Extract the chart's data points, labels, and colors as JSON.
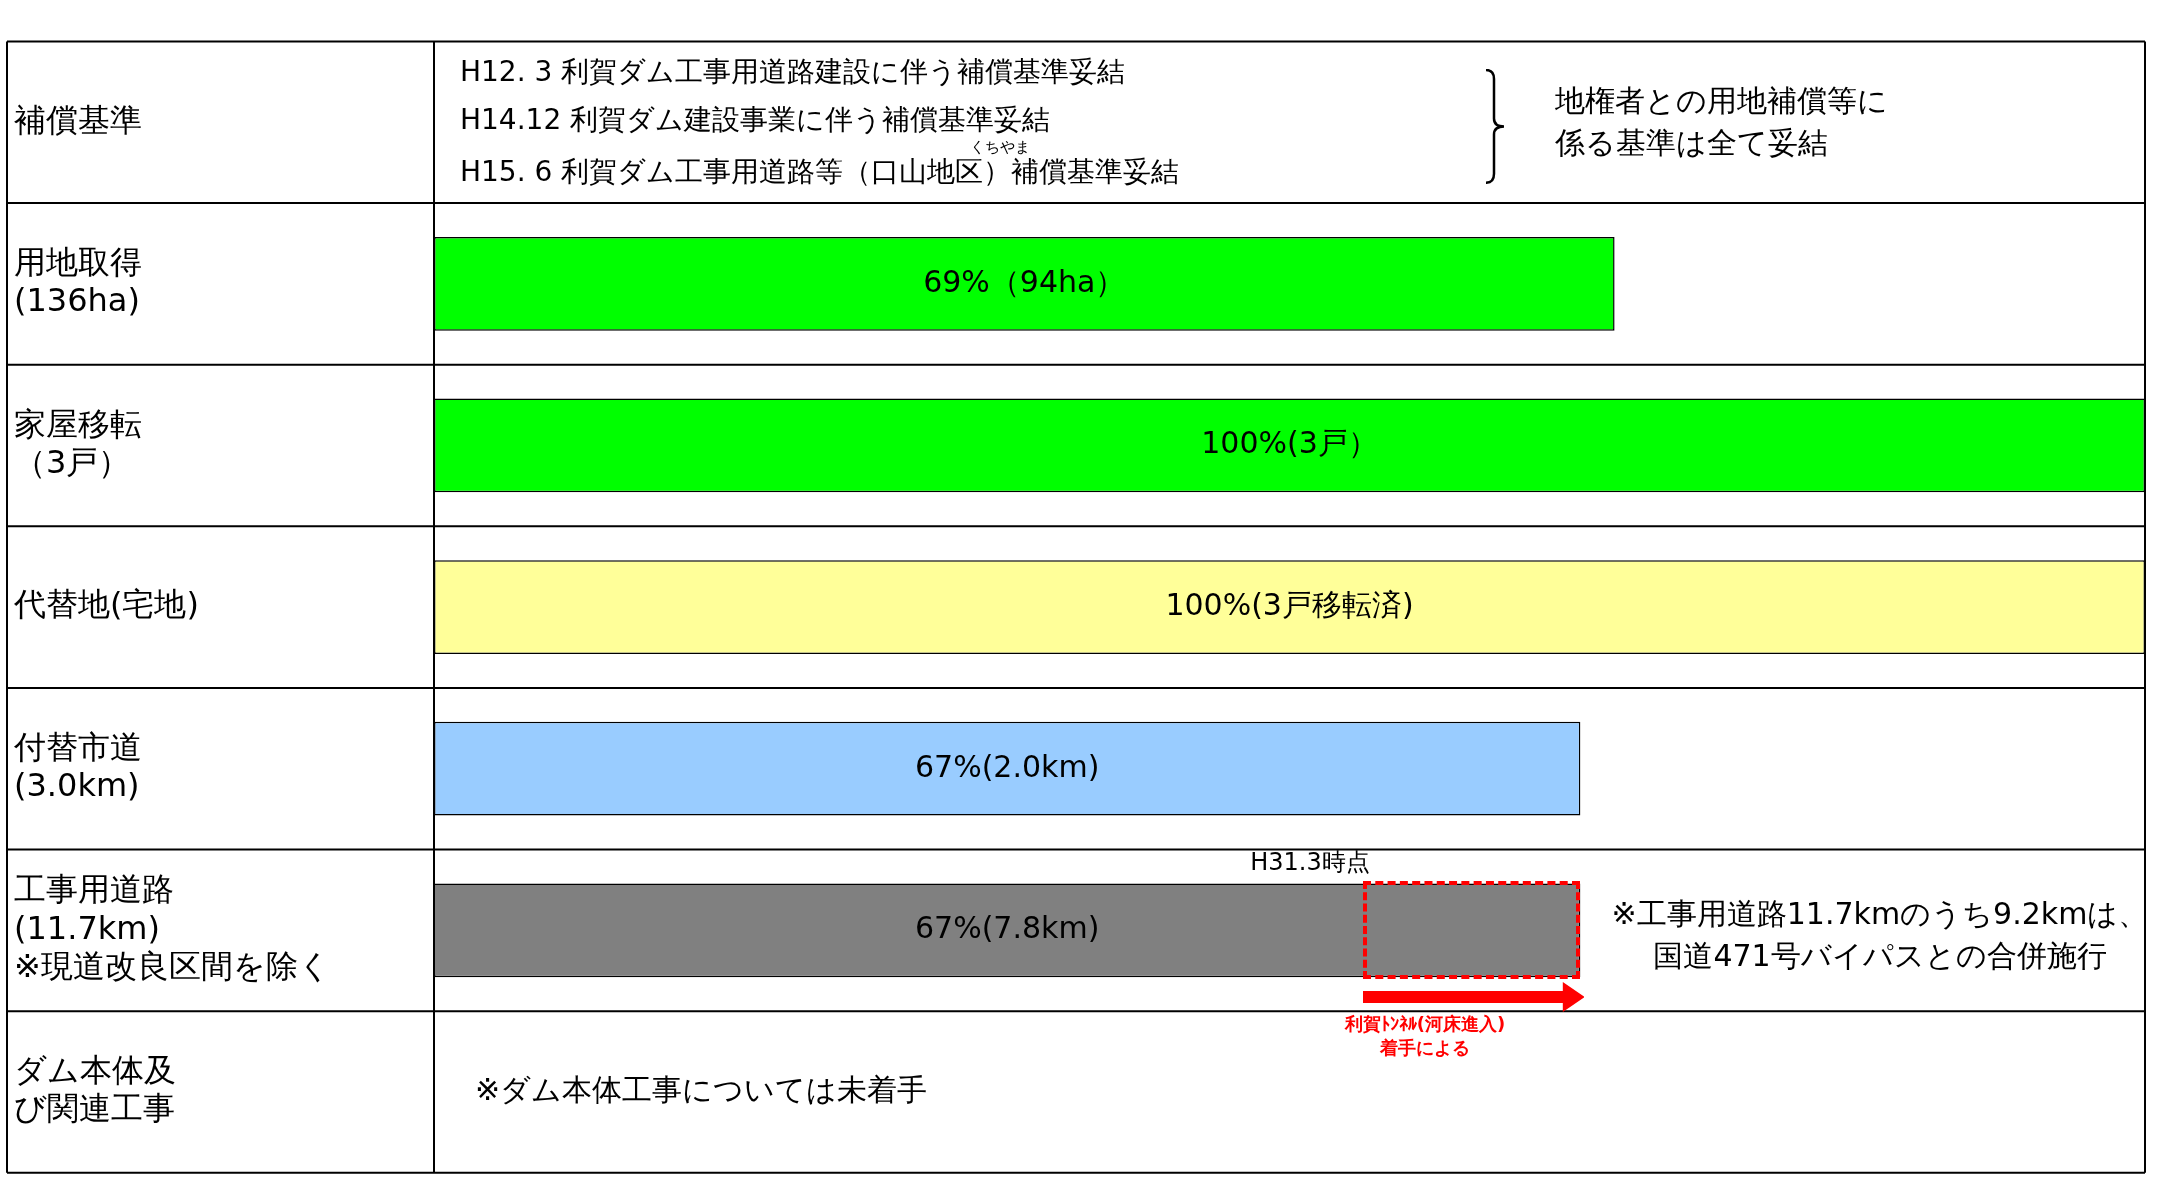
{
  "chart_data": {
    "type": "bar",
    "orientation": "horizontal",
    "categories": [
      "補償基準",
      "用地取得(136ha)",
      "家屋移転（3戸）",
      "代替地(宅地)",
      "付替市道(3.0km)",
      "工事用道路(11.7km)※現道改良区間を除く",
      "ダム本体及び関連工事"
    ],
    "values": [
      null,
      69,
      100,
      100,
      67,
      67,
      null
    ],
    "colors": [
      null,
      "#00ff00",
      "#00ff00",
      "#ffff99",
      "#99ccff",
      "#808080",
      null
    ],
    "value_labels": [
      null,
      "69%（94ha）",
      "100%(3戸）",
      "100%(3戸移転済)",
      "67%(2.0km)",
      "67%(7.8km)",
      null
    ],
    "xlim": [
      0,
      100
    ],
    "tick_labels": "y",
    "grid": "y",
    "legend": false,
    "annotations": [
      "H12. 3 利賀ダム工事用道路建設に伴う補償基準妥結",
      "H14.12 利賀ダム建設事業に伴う補償基準妥結",
      "H15. 6 利賀ダム工事用道路等（口山地区）補償基準妥結",
      "くちやま",
      "地権者との用地補償等に係る基準は全て妥結",
      "H31.3時点",
      "利賀ﾄﾝﾈﾙ(河床進入)着手による",
      "※工事用道路11.7kmのうち9.2kmは、国道471号バイパスとの合併施行",
      "※ダム本体工事については未着手"
    ]
  }
}
